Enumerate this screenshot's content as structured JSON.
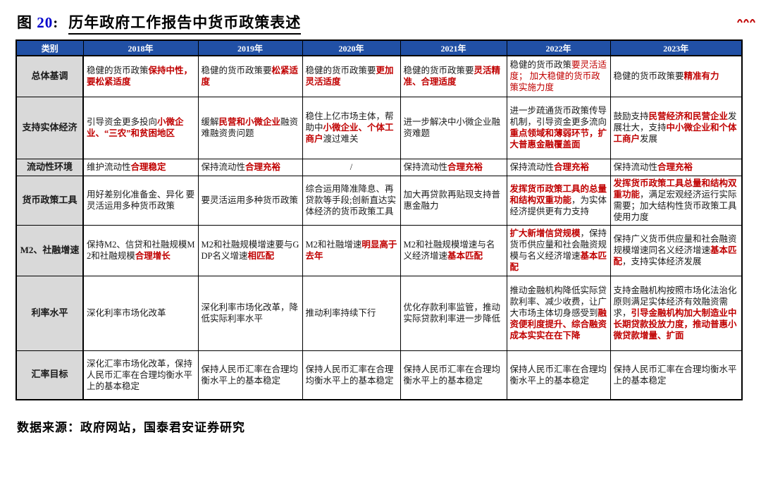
{
  "page": {
    "fig_label": "图",
    "fig_num": "20",
    "fig_sep": ":",
    "title": "历年政府工作报告中货币政策表述",
    "source": "数据来源：政府网站，国泰君安证券研究"
  },
  "colors": {
    "header_bg": "#2150A5",
    "header_text": "#FFFFFF",
    "category_bg": "#D9D9D9",
    "highlight_red": "#C00000",
    "fig_num_blue": "#0000CC",
    "border": "#000000"
  },
  "icons": {
    "top_right": "logo-fragment"
  },
  "table": {
    "columns": [
      "类别",
      "2018年",
      "2019年",
      "2020年",
      "2021年",
      "2022年",
      "2023年"
    ],
    "rows": [
      {
        "category": "总体基调",
        "cells": [
          {
            "segs": [
              {
                "t": "稳健的货币政策",
                "s": "p"
              },
              {
                "t": "保持中性，要松紧适度",
                "s": "rb"
              }
            ]
          },
          {
            "segs": [
              {
                "t": "稳健的货币政策要",
                "s": "p"
              },
              {
                "t": "松紧适度",
                "s": "rb"
              }
            ]
          },
          {
            "segs": [
              {
                "t": "稳健的货币政策要",
                "s": "p"
              },
              {
                "t": "更加灵活适度",
                "s": "rb"
              }
            ]
          },
          {
            "segs": [
              {
                "t": "稳健的货币政策要",
                "s": "p"
              },
              {
                "t": "灵活精准、合理适度",
                "s": "rb"
              }
            ]
          },
          {
            "segs": [
              {
                "t": "稳健的货币政策",
                "s": "p"
              },
              {
                "t": "要灵活适度； 加大稳健的货币政策实施力度",
                "s": "r"
              }
            ]
          },
          {
            "segs": [
              {
                "t": "稳健的货币政策要",
                "s": "p"
              },
              {
                "t": "精准有力",
                "s": "rb"
              }
            ]
          }
        ]
      },
      {
        "category": "支持实体经济",
        "cells": [
          {
            "segs": [
              {
                "t": "引导资金更多投向",
                "s": "p"
              },
              {
                "t": "小微企业、“三农”和贫困地区",
                "s": "rb"
              }
            ]
          },
          {
            "segs": [
              {
                "t": "缓解",
                "s": "p"
              },
              {
                "t": "民营和小微企业",
                "s": "rb"
              },
              {
                "t": "融资难融资贵问题",
                "s": "p"
              }
            ]
          },
          {
            "segs": [
              {
                "t": "稳住上亿市场主体，帮助中",
                "s": "p"
              },
              {
                "t": "小微企业、个体工商户",
                "s": "rb"
              },
              {
                "t": "渡过难关",
                "s": "p"
              }
            ]
          },
          {
            "segs": [
              {
                "t": "进一步解决中小微企业融资难题",
                "s": "p"
              }
            ]
          },
          {
            "segs": [
              {
                "t": "进一步疏通货币政策传导机制，引导资金更多流向",
                "s": "p"
              },
              {
                "t": "重点领域和薄弱环节，扩大普惠金融覆盖面",
                "s": "rb"
              }
            ]
          },
          {
            "segs": [
              {
                "t": "鼓励支持",
                "s": "p"
              },
              {
                "t": "民营经济和民营企业",
                "s": "rb"
              },
              {
                "t": "发展壮大，支持",
                "s": "p"
              },
              {
                "t": "中小微企业和个体工商户",
                "s": "rb"
              },
              {
                "t": "发展",
                "s": "p"
              }
            ]
          }
        ]
      },
      {
        "category": "流动性环境",
        "cells": [
          {
            "segs": [
              {
                "t": "维护流动性",
                "s": "p"
              },
              {
                "t": "合理稳定",
                "s": "rb"
              }
            ]
          },
          {
            "segs": [
              {
                "t": "保持流动性",
                "s": "p"
              },
              {
                "t": "合理充裕",
                "s": "rb"
              }
            ]
          },
          {
            "center": true,
            "segs": [
              {
                "t": "/",
                "s": "p"
              }
            ]
          },
          {
            "segs": [
              {
                "t": "保持流动性",
                "s": "p"
              },
              {
                "t": "合理充裕",
                "s": "rb"
              }
            ]
          },
          {
            "segs": [
              {
                "t": "保持流动性",
                "s": "p"
              },
              {
                "t": "合理充裕",
                "s": "rb"
              }
            ]
          },
          {
            "segs": [
              {
                "t": "保持流动性",
                "s": "p"
              },
              {
                "t": "合理充裕",
                "s": "rb"
              }
            ]
          }
        ]
      },
      {
        "category": "货币政策工具",
        "cells": [
          {
            "segs": [
              {
                "t": "用好差别化准备金、异化 要灵活运用多种货币政策",
                "s": "p"
              }
            ]
          },
          {
            "segs": [
              {
                "t": "要灵活运用多种货币政策",
                "s": "p"
              }
            ]
          },
          {
            "segs": [
              {
                "t": "综合运用降准降息、再贷款等手段;创新直达实体经济的货币政策工具",
                "s": "p"
              }
            ]
          },
          {
            "segs": [
              {
                "t": "加大再贷款再贴现支持普惠金融力",
                "s": "p"
              }
            ]
          },
          {
            "segs": [
              {
                "t": "发挥货币政策工具的总量和结构双重功能",
                "s": "rb"
              },
              {
                "t": "，为实体经济提供更有力支持",
                "s": "p"
              }
            ]
          },
          {
            "segs": [
              {
                "t": "发挥货币政策工具总量和结构双重功能",
                "s": "rb"
              },
              {
                "t": "，满足宏观经济运行实际需要；加大结构性货币政策工具使用力度",
                "s": "p"
              }
            ]
          }
        ]
      },
      {
        "category": "M2、社融增速",
        "cells": [
          {
            "segs": [
              {
                "t": "保持M2、信贷和社融规模M2和社融规模",
                "s": "p"
              },
              {
                "t": "合理增长",
                "s": "rb"
              }
            ]
          },
          {
            "segs": [
              {
                "t": "M2和社融规模增速要与GDP名义增速",
                "s": "p"
              },
              {
                "t": "相匹配",
                "s": "rb"
              }
            ]
          },
          {
            "segs": [
              {
                "t": "M2和社融增速",
                "s": "p"
              },
              {
                "t": "明显高于去年",
                "s": "rb"
              }
            ]
          },
          {
            "segs": [
              {
                "t": "M2和社融规模增速与名义经济增速",
                "s": "p"
              },
              {
                "t": "基本匹配",
                "s": "rb"
              }
            ]
          },
          {
            "segs": [
              {
                "t": "扩大新增信贷规模",
                "s": "rb"
              },
              {
                "t": "，保持货币供应量和社会融资规模与名义经济增速",
                "s": "p"
              },
              {
                "t": "基本匹配",
                "s": "rb"
              }
            ]
          },
          {
            "segs": [
              {
                "t": "保持广义货币供应量和社会融资规模增速同名义经济增速",
                "s": "p"
              },
              {
                "t": "基本匹配",
                "s": "rb"
              },
              {
                "t": "，支持实体经济发展",
                "s": "p"
              }
            ]
          }
        ]
      },
      {
        "category": "利率水平",
        "cells": [
          {
            "segs": [
              {
                "t": "深化利率市场化改革",
                "s": "p"
              }
            ]
          },
          {
            "segs": [
              {
                "t": "深化利率市场化改革，降低实际利率水平",
                "s": "p"
              }
            ]
          },
          {
            "segs": [
              {
                "t": "推动利率持续下行",
                "s": "p"
              }
            ]
          },
          {
            "segs": [
              {
                "t": "优化存款利率监管，推动实际贷款利率进一步降低",
                "s": "p"
              }
            ]
          },
          {
            "segs": [
              {
                "t": "推动金融机构降低实际贷款利率、减少收费，让广大市场主体切身感受到",
                "s": "p"
              },
              {
                "t": "融资便利度提升、综合融资成本实实在在下降",
                "s": "rb"
              }
            ]
          },
          {
            "segs": [
              {
                "t": "支持金融机构按照市场化法治化原则满足实体经济有效融资需求，",
                "s": "p"
              },
              {
                "t": "引导金融机构加大制造业中长期贷款投放力度，推动普惠小微贷款增量、扩面",
                "s": "rb"
              }
            ]
          }
        ]
      },
      {
        "category": "汇率目标",
        "cells": [
          {
            "segs": [
              {
                "t": "深化汇率市场化改革，保持人民币汇率在合理均衡水平上的基本稳定",
                "s": "p"
              }
            ]
          },
          {
            "segs": [
              {
                "t": "保持人民币汇率在合理均衡水平上的基本稳定",
                "s": "p"
              }
            ]
          },
          {
            "segs": [
              {
                "t": "保持人民币汇率在合理均衡水平上的基本稳定",
                "s": "p"
              }
            ]
          },
          {
            "segs": [
              {
                "t": "保持人民币汇率在合理均衡水平上的基本稳定",
                "s": "p"
              }
            ]
          },
          {
            "segs": [
              {
                "t": "保持人民币汇率在合理均衡水平上的基本稳定",
                "s": "p"
              }
            ]
          },
          {
            "segs": [
              {
                "t": "保持人民币汇率在合理均衡水平上的基本稳定",
                "s": "p"
              }
            ]
          }
        ]
      }
    ]
  }
}
